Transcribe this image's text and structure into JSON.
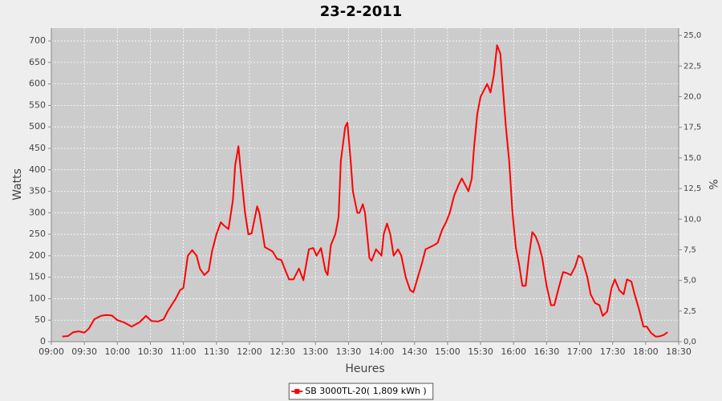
{
  "chart_data": {
    "type": "line",
    "title": "23-2-2011",
    "x_label": "Heures",
    "y_label": "Watts",
    "y2_label": "%",
    "x": [
      "09:10",
      "09:15",
      "09:20",
      "09:25",
      "09:30",
      "09:34",
      "09:39",
      "09:45",
      "09:50",
      "09:55",
      "10:00",
      "10:06",
      "10:13",
      "10:20",
      "10:26",
      "10:31",
      "10:37",
      "10:42",
      "10:46",
      "10:53",
      "10:57",
      "11:00",
      "11:04",
      "11:08",
      "11:12",
      "11:15",
      "11:19",
      "11:23",
      "11:26",
      "11:30",
      "11:34",
      "11:37",
      "11:41",
      "11:45",
      "11:47",
      "11:50",
      "11:52",
      "11:56",
      "11:59",
      "12:02",
      "12:07",
      "12:09",
      "12:14",
      "12:21",
      "12:25",
      "12:29",
      "12:32",
      "12:36",
      "12:40",
      "12:45",
      "12:49",
      "12:54",
      "12:58",
      "13:01",
      "13:05",
      "13:09",
      "13:11",
      "13:14",
      "13:18",
      "13:21",
      "13:23",
      "13:27",
      "13:29",
      "13:32",
      "13:34",
      "13:38",
      "13:40",
      "13:43",
      "13:45",
      "13:49",
      "13:51",
      "13:55",
      "14:00",
      "14:02",
      "14:05",
      "14:08",
      "14:11",
      "14:15",
      "14:18",
      "14:22",
      "14:26",
      "14:29",
      "14:33",
      "14:37",
      "14:40",
      "14:48",
      "14:51",
      "14:55",
      "14:59",
      "15:02",
      "15:06",
      "15:10",
      "15:13",
      "15:17",
      "15:19",
      "15:22",
      "15:24",
      "15:27",
      "15:30",
      "15:33",
      "15:36",
      "15:39",
      "15:42",
      "15:45",
      "15:48",
      "15:50",
      "15:53",
      "15:56",
      "15:59",
      "16:02",
      "16:05",
      "16:08",
      "16:11",
      "16:14",
      "16:17",
      "16:20",
      "16:23",
      "16:26",
      "16:30",
      "16:34",
      "16:37",
      "16:41",
      "16:45",
      "16:48",
      "16:52",
      "16:56",
      "16:59",
      "17:02",
      "17:07",
      "17:10",
      "17:14",
      "17:18",
      "17:21",
      "17:25",
      "17:29",
      "17:32",
      "17:36",
      "17:40",
      "17:43",
      "17:47",
      "17:50",
      "17:54",
      "17:58",
      "18:01",
      "18:05",
      "18:09",
      "18:12",
      "18:16",
      "18:20"
    ],
    "series": [
      {
        "name": "SB 3000TL-20( 1,809 kWh )",
        "color": "#ff0000",
        "values": [
          12,
          13,
          22,
          24,
          21,
          30,
          52,
          60,
          62,
          61,
          50,
          45,
          35,
          45,
          60,
          48,
          47,
          52,
          72,
          100,
          120,
          125,
          200,
          213,
          200,
          170,
          155,
          165,
          210,
          250,
          278,
          270,
          262,
          330,
          410,
          455,
          400,
          300,
          250,
          252,
          315,
          300,
          220,
          210,
          193,
          190,
          170,
          145,
          145,
          170,
          143,
          215,
          218,
          200,
          218,
          165,
          155,
          225,
          250,
          290,
          420,
          500,
          510,
          420,
          350,
          300,
          300,
          320,
          300,
          195,
          188,
          215,
          200,
          250,
          275,
          250,
          200,
          215,
          200,
          150,
          120,
          115,
          150,
          185,
          215,
          225,
          230,
          260,
          280,
          300,
          340,
          365,
          380,
          360,
          350,
          380,
          450,
          530,
          570,
          585,
          600,
          580,
          620,
          690,
          670,
          600,
          500,
          420,
          300,
          220,
          180,
          130,
          130,
          200,
          255,
          245,
          225,
          195,
          130,
          85,
          85,
          125,
          162,
          160,
          155,
          175,
          200,
          195,
          150,
          110,
          90,
          85,
          60,
          70,
          125,
          145,
          120,
          110,
          145,
          140,
          110,
          75,
          35,
          35,
          20,
          12,
          12,
          15,
          22
        ]
      }
    ],
    "xlim": [
      "09:00",
      "18:30"
    ],
    "xticks": [
      "09:00",
      "09:30",
      "10:00",
      "10:30",
      "11:00",
      "11:30",
      "12:00",
      "12:30",
      "13:00",
      "13:30",
      "14:00",
      "14:30",
      "15:00",
      "15:30",
      "16:00",
      "16:30",
      "17:00",
      "17:30",
      "18:00",
      "18:30"
    ],
    "ylim": [
      0,
      730
    ],
    "yticks": [
      0,
      50,
      100,
      150,
      200,
      250,
      300,
      350,
      400,
      450,
      500,
      550,
      600,
      650,
      700
    ],
    "y2lim": [
      0,
      25.6
    ],
    "y2ticks": [
      {
        "value": 0,
        "label": "0,0"
      },
      {
        "value": 2.5,
        "label": "2,5"
      },
      {
        "value": 5,
        "label": "5,0"
      },
      {
        "value": 7.5,
        "label": "7,5"
      },
      {
        "value": 10,
        "label": "10,0"
      },
      {
        "value": 12.5,
        "label": "12,5"
      },
      {
        "value": 15,
        "label": "15,0"
      },
      {
        "value": 17.5,
        "label": "17,5"
      },
      {
        "value": 20,
        "label": "20,0"
      },
      {
        "value": 22.5,
        "label": "22,5"
      },
      {
        "value": 25,
        "label": "25,0"
      }
    ],
    "grid": true,
    "legend": "bottom"
  }
}
